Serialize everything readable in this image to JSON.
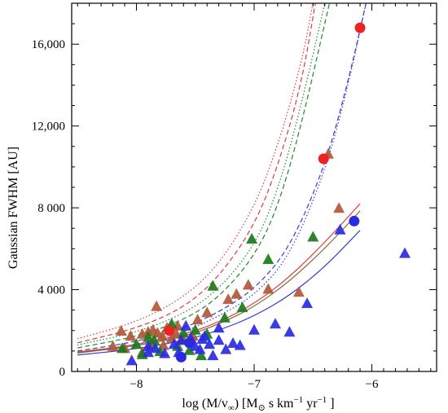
{
  "chart_data": {
    "type": "scatter",
    "ylabel": "Gaussian FWHM [AU]",
    "xlabel_parts": {
      "pre": "log (",
      "mdot": "M",
      "mid": "/v",
      "inf": "∞",
      "post": ") [M",
      "sun": "⊙",
      "units": " s km",
      "exp1": "−1",
      "yr": " yr",
      "exp2": "−1",
      "end": " ]"
    },
    "xlim": [
      -8.55,
      -5.45
    ],
    "ylim": [
      0,
      18000
    ],
    "xticks": [
      -8,
      -7,
      -6
    ],
    "xtick_labels": [
      "−8",
      "−7",
      "−6"
    ],
    "yticks": [
      0,
      4000,
      8000,
      12000,
      16000
    ],
    "ytick_labels": [
      "0",
      "4 000",
      "8 000",
      "12,000",
      "16,000"
    ],
    "grid": false,
    "colors": {
      "red": "#ee2222",
      "green": "#1a7a1a",
      "blue": "#2a2ae0",
      "brown": "#b0583a",
      "blue_line": "#3a3ad8",
      "red_line": "#e03a3a",
      "green_line": "#228822",
      "brown_line": "#7a6a3a"
    },
    "series": [
      {
        "style": "triangle",
        "color": "brown",
        "points": [
          [
            -8.13,
            1950
          ],
          [
            -8.05,
            1700
          ],
          [
            -7.95,
            1800
          ],
          [
            -7.9,
            1900
          ],
          [
            -7.86,
            2000
          ],
          [
            -7.82,
            1850
          ],
          [
            -7.78,
            1700
          ],
          [
            -7.74,
            2100
          ],
          [
            -7.7,
            1600
          ],
          [
            -7.66,
            1800
          ],
          [
            -7.83,
            3150
          ],
          [
            -7.65,
            2200
          ],
          [
            -7.48,
            2500
          ],
          [
            -7.4,
            2850
          ],
          [
            -7.22,
            3500
          ],
          [
            -7.15,
            3750
          ],
          [
            -7.05,
            4200
          ],
          [
            -6.88,
            4000
          ],
          [
            -6.62,
            3850
          ],
          [
            -6.37,
            10600
          ],
          [
            -6.28,
            7950
          ],
          [
            -7.95,
            900
          ],
          [
            -8.1,
            1100
          ],
          [
            -7.87,
            1300
          ],
          [
            -7.77,
            1250
          ],
          [
            -7.6,
            1500
          ],
          [
            -7.52,
            1700
          ],
          [
            -8.2,
            1200
          ]
        ]
      },
      {
        "style": "triangle",
        "color": "green",
        "points": [
          [
            -8.12,
            1100
          ],
          [
            -7.95,
            800
          ],
          [
            -7.85,
            1500
          ],
          [
            -7.8,
            950
          ],
          [
            -7.7,
            2300
          ],
          [
            -7.55,
            1000
          ],
          [
            -7.45,
            750
          ],
          [
            -7.4,
            1800
          ],
          [
            -7.35,
            4150
          ],
          [
            -7.25,
            2600
          ],
          [
            -7.1,
            3100
          ],
          [
            -7.02,
            6450
          ],
          [
            -6.88,
            5450
          ],
          [
            -6.5,
            6550
          ],
          [
            -8.0,
            1300
          ],
          [
            -7.9,
            1650
          ],
          [
            -7.65,
            1200
          ],
          [
            -7.5,
            2000
          ],
          [
            -7.6,
            1850
          ]
        ]
      },
      {
        "style": "triangle",
        "color": "blue",
        "points": [
          [
            -8.04,
            500
          ],
          [
            -7.9,
            900
          ],
          [
            -7.84,
            1100
          ],
          [
            -7.76,
            850
          ],
          [
            -7.68,
            1300
          ],
          [
            -7.62,
            1500
          ],
          [
            -7.58,
            2200
          ],
          [
            -7.54,
            1600
          ],
          [
            -7.5,
            1200
          ],
          [
            -7.46,
            1050
          ],
          [
            -7.42,
            1700
          ],
          [
            -7.38,
            1300
          ],
          [
            -7.35,
            750
          ],
          [
            -7.3,
            2100
          ],
          [
            -7.24,
            1050
          ],
          [
            -7.18,
            1350
          ],
          [
            -7.12,
            1250
          ],
          [
            -7.0,
            2000
          ],
          [
            -6.82,
            2300
          ],
          [
            -6.7,
            1900
          ],
          [
            -6.55,
            3300
          ],
          [
            -6.27,
            6900
          ],
          [
            -5.72,
            5750
          ],
          [
            -7.44,
            1550
          ],
          [
            -7.9,
            1200
          ],
          [
            -7.64,
            900
          ],
          [
            -7.3,
            1500
          ]
        ]
      },
      {
        "style": "circle",
        "color": "red",
        "points": [
          [
            -7.72,
            2000
          ],
          [
            -6.41,
            10400
          ],
          [
            -6.1,
            16800
          ]
        ]
      },
      {
        "style": "circle",
        "color": "blue",
        "points": [
          [
            -7.62,
            700
          ],
          [
            -7.55,
            1400
          ],
          [
            -6.15,
            7350
          ]
        ]
      }
    ],
    "curves": [
      {
        "color": "red_line",
        "dash": "dotted",
        "points": [
          [
            -8.5,
            1600
          ],
          [
            -8.0,
            2400
          ],
          [
            -7.6,
            3600
          ],
          [
            -7.3,
            5200
          ],
          [
            -7.0,
            8000
          ],
          [
            -6.8,
            11000
          ],
          [
            -6.6,
            15000
          ],
          [
            -6.5,
            18000
          ]
        ]
      },
      {
        "color": "red_line",
        "dash": "dashed",
        "points": [
          [
            -8.5,
            1400
          ],
          [
            -8.0,
            2100
          ],
          [
            -7.6,
            3100
          ],
          [
            -7.3,
            4600
          ],
          [
            -7.0,
            7100
          ],
          [
            -6.8,
            10000
          ],
          [
            -6.6,
            14000
          ],
          [
            -6.48,
            18000
          ]
        ]
      },
      {
        "color": "green_line",
        "dash": "dotted",
        "points": [
          [
            -8.5,
            1300
          ],
          [
            -8.0,
            1900
          ],
          [
            -7.6,
            2800
          ],
          [
            -7.3,
            4000
          ],
          [
            -7.0,
            6100
          ],
          [
            -6.8,
            8800
          ],
          [
            -6.6,
            13000
          ],
          [
            -6.4,
            18000
          ]
        ]
      },
      {
        "color": "green_line",
        "dash": "dashed",
        "points": [
          [
            -8.5,
            1150
          ],
          [
            -8.0,
            1700
          ],
          [
            -7.6,
            2500
          ],
          [
            -7.3,
            3600
          ],
          [
            -7.0,
            5600
          ],
          [
            -6.8,
            8000
          ],
          [
            -6.6,
            12000
          ],
          [
            -6.36,
            18000
          ]
        ]
      },
      {
        "color": "blue_line",
        "dash": "dotted",
        "points": [
          [
            -8.5,
            900
          ],
          [
            -8.0,
            1300
          ],
          [
            -7.6,
            1900
          ],
          [
            -7.3,
            2700
          ],
          [
            -7.0,
            3700
          ],
          [
            -6.7,
            5600
          ],
          [
            -6.4,
            9700
          ],
          [
            -6.2,
            14000
          ],
          [
            -6.05,
            18000
          ]
        ]
      },
      {
        "color": "blue_line",
        "dash": "dashed",
        "points": [
          [
            -8.5,
            1000
          ],
          [
            -8.0,
            1450
          ],
          [
            -7.6,
            2100
          ],
          [
            -7.3,
            2900
          ],
          [
            -7.0,
            4000
          ],
          [
            -6.7,
            6000
          ],
          [
            -6.4,
            10000
          ],
          [
            -6.2,
            14200
          ],
          [
            -6.05,
            18000
          ]
        ]
      },
      {
        "color": "red_line",
        "dash": "solid",
        "points": [
          [
            -8.5,
            950
          ],
          [
            -8.0,
            1300
          ],
          [
            -7.6,
            1800
          ],
          [
            -7.3,
            2400
          ],
          [
            -7.0,
            3300
          ],
          [
            -6.7,
            4600
          ],
          [
            -6.4,
            6300
          ],
          [
            -6.1,
            8200
          ]
        ]
      },
      {
        "color": "brown_line",
        "dash": "solid",
        "points": [
          [
            -8.5,
            900
          ],
          [
            -8.0,
            1250
          ],
          [
            -7.6,
            1700
          ],
          [
            -7.3,
            2300
          ],
          [
            -7.0,
            3150
          ],
          [
            -6.7,
            4400
          ],
          [
            -6.4,
            6000
          ],
          [
            -6.1,
            7850
          ]
        ]
      },
      {
        "color": "blue_line",
        "dash": "solid",
        "points": [
          [
            -8.5,
            800
          ],
          [
            -8.0,
            1100
          ],
          [
            -7.6,
            1500
          ],
          [
            -7.3,
            2000
          ],
          [
            -7.0,
            2700
          ],
          [
            -6.7,
            3700
          ],
          [
            -6.4,
            5100
          ],
          [
            -6.1,
            6900
          ]
        ]
      }
    ]
  }
}
